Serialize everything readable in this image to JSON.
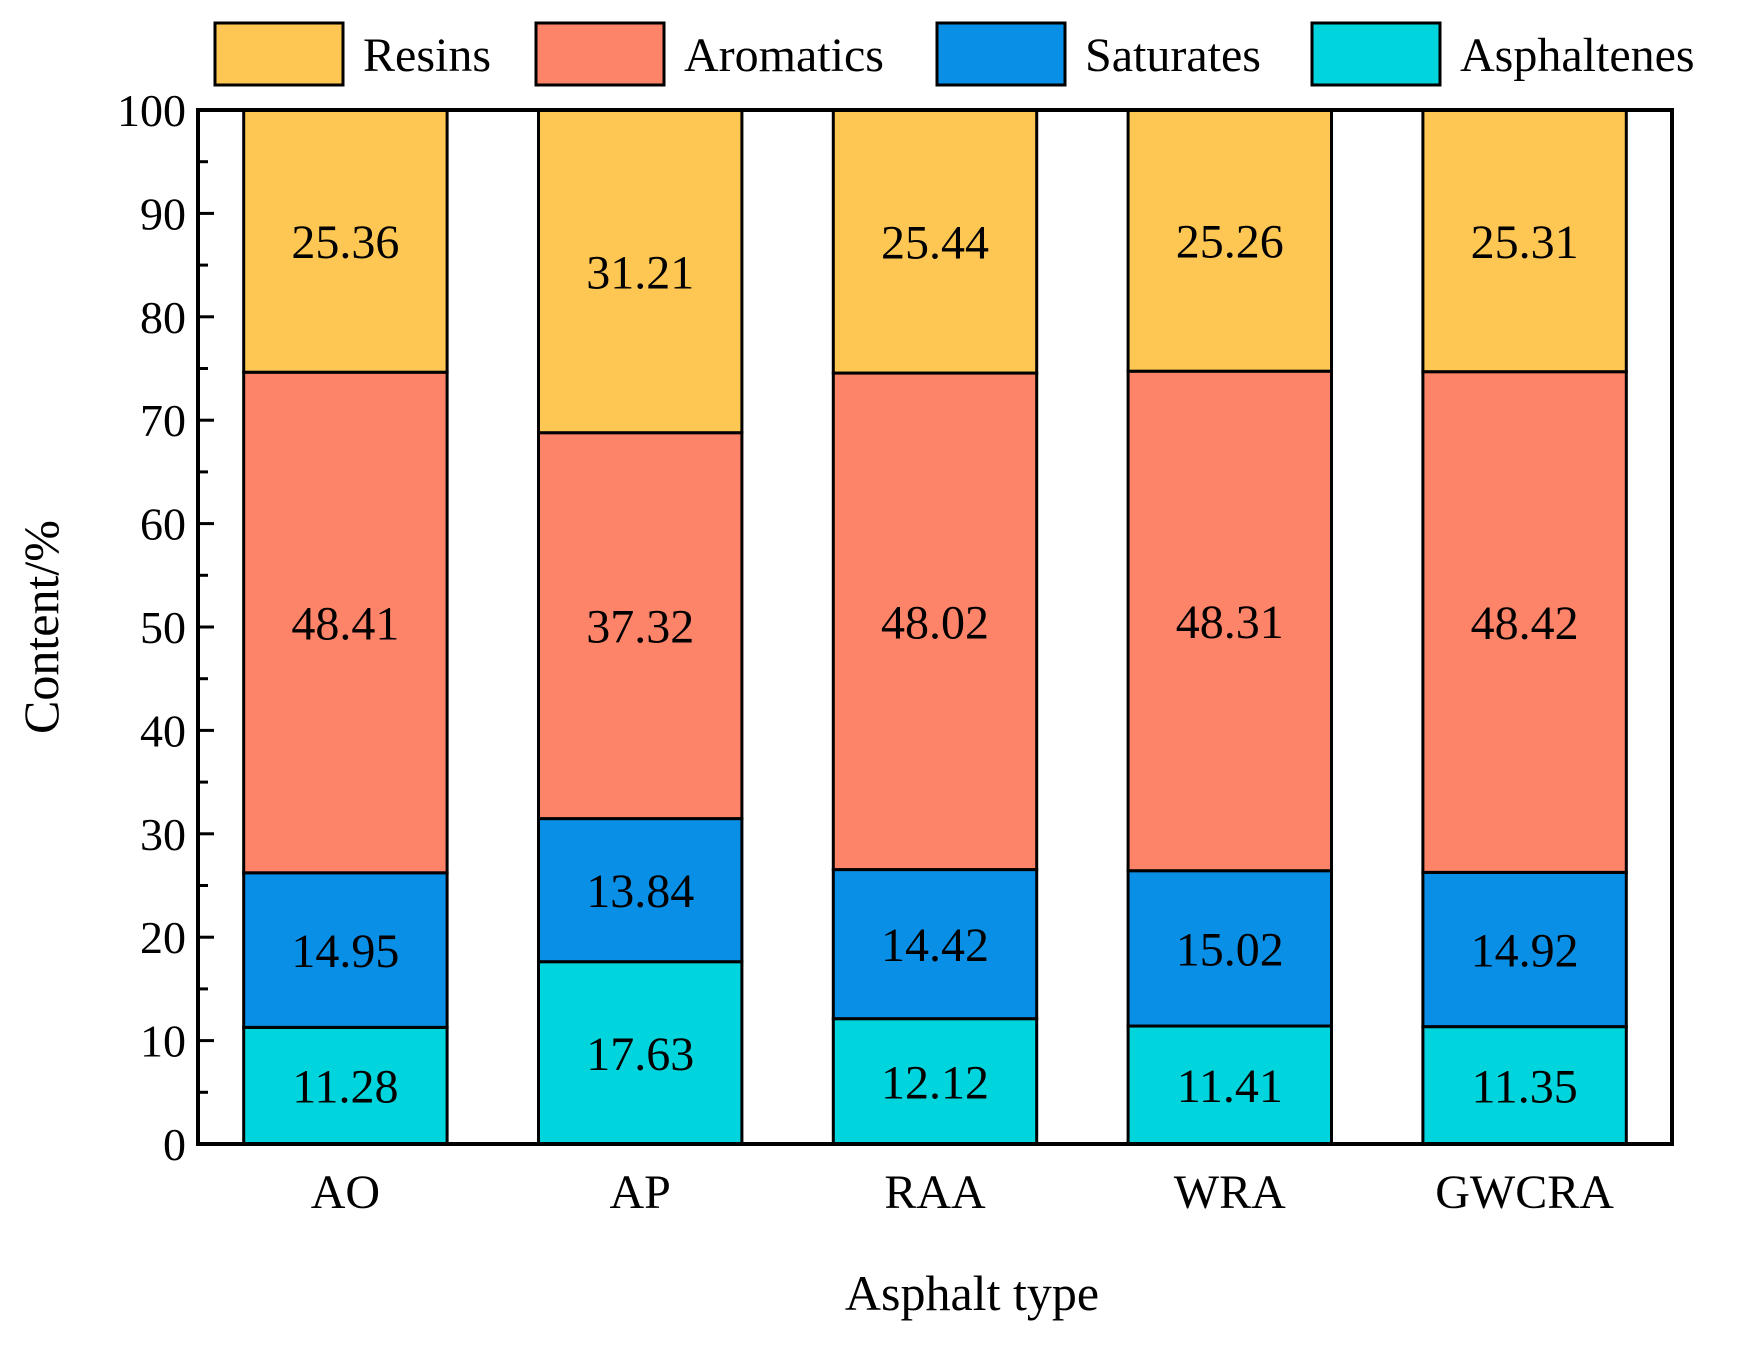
{
  "chart_data": {
    "type": "bar",
    "stacked": true,
    "title": "",
    "xlabel": "Asphalt type",
    "ylabel": "Content/%",
    "ylim": [
      0,
      100
    ],
    "yticks": [
      "0",
      "10",
      "20",
      "30",
      "40",
      "50",
      "60",
      "70",
      "80",
      "90",
      "100"
    ],
    "grid": false,
    "legend_position": "top",
    "categories": [
      "AO",
      "AP",
      "RAA",
      "WRA",
      "GWCRA"
    ],
    "series": [
      {
        "name": "Asphaltenes",
        "color": "#00d4dc",
        "values": [
          11.28,
          17.63,
          12.12,
          11.41,
          11.35
        ],
        "labels": [
          "11.28",
          "17.63",
          "12.12",
          "11.41",
          "11.35"
        ]
      },
      {
        "name": "Saturates",
        "color": "#0a8fe6",
        "values": [
          14.95,
          13.84,
          14.42,
          15.02,
          14.92
        ],
        "labels": [
          "14.95",
          "13.84",
          "14.42",
          "15.02",
          "14.92"
        ]
      },
      {
        "name": "Aromatics",
        "color": "#fd8369",
        "values": [
          48.41,
          37.32,
          48.02,
          48.31,
          48.42
        ],
        "labels": [
          "48.41",
          "37.32",
          "48.02",
          "48.31",
          "48.42"
        ]
      },
      {
        "name": "Resins",
        "color": "#fec652",
        "values": [
          25.36,
          31.21,
          25.44,
          25.26,
          25.31
        ],
        "labels": [
          "25.36",
          "31.21",
          "25.44",
          "25.26",
          "25.31"
        ]
      }
    ],
    "legend_order": [
      "Resins",
      "Aromatics",
      "Saturates",
      "Asphaltenes"
    ]
  }
}
